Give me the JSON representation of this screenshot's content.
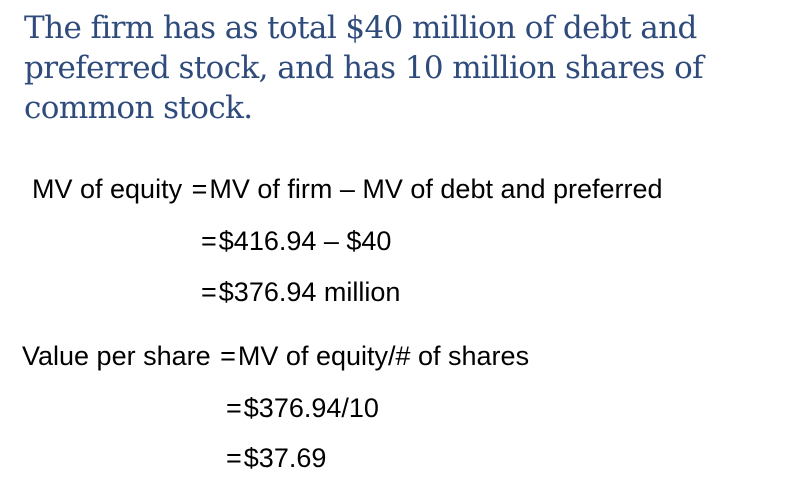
{
  "title": {
    "lines": [
      "The firm has as total $40 million of debt and",
      "preferred stock, and has 10 million shares of",
      "common stock."
    ]
  },
  "equity_block": {
    "lhs": "MV of equity",
    "eq": "=",
    "rhs1": "MV of firm – MV of debt and preferred",
    "rhs2": "$416.94 – $40",
    "rhs3": "$376.94 million"
  },
  "share_block": {
    "lhs": "Value per share",
    "eq": "=",
    "rhs1": "MV of equity/# of shares",
    "rhs2": "$376.94/10",
    "rhs3": "$37.69"
  }
}
